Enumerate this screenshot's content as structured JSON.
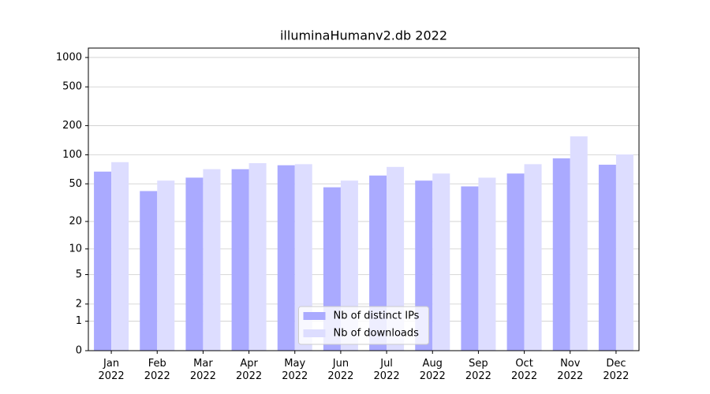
{
  "chart_data": {
    "type": "bar",
    "title": "illuminaHumanv2.db 2022",
    "categories": [
      "Jan\n2022",
      "Feb\n2022",
      "Mar\n2022",
      "Apr\n2022",
      "May\n2022",
      "Jun\n2022",
      "Jul\n2022",
      "Aug\n2022",
      "Sep\n2022",
      "Oct\n2022",
      "Nov\n2022",
      "Dec\n2022"
    ],
    "series": [
      {
        "name": "Nb of distinct IPs",
        "color": "#aaaaff",
        "values": [
          67,
          42,
          58,
          71,
          78,
          46,
          61,
          54,
          47,
          64,
          92,
          79
        ]
      },
      {
        "name": "Nb of downloads",
        "color": "#ddddff",
        "values": [
          84,
          54,
          71,
          82,
          80,
          54,
          75,
          64,
          58,
          80,
          155,
          101
        ]
      }
    ],
    "yscale": "log1p",
    "ylim": [
      0,
      1249
    ],
    "yticks": [
      0,
      1,
      2,
      5,
      10,
      20,
      50,
      100,
      200,
      500,
      1000
    ],
    "grid": true,
    "legend": "lower center"
  }
}
